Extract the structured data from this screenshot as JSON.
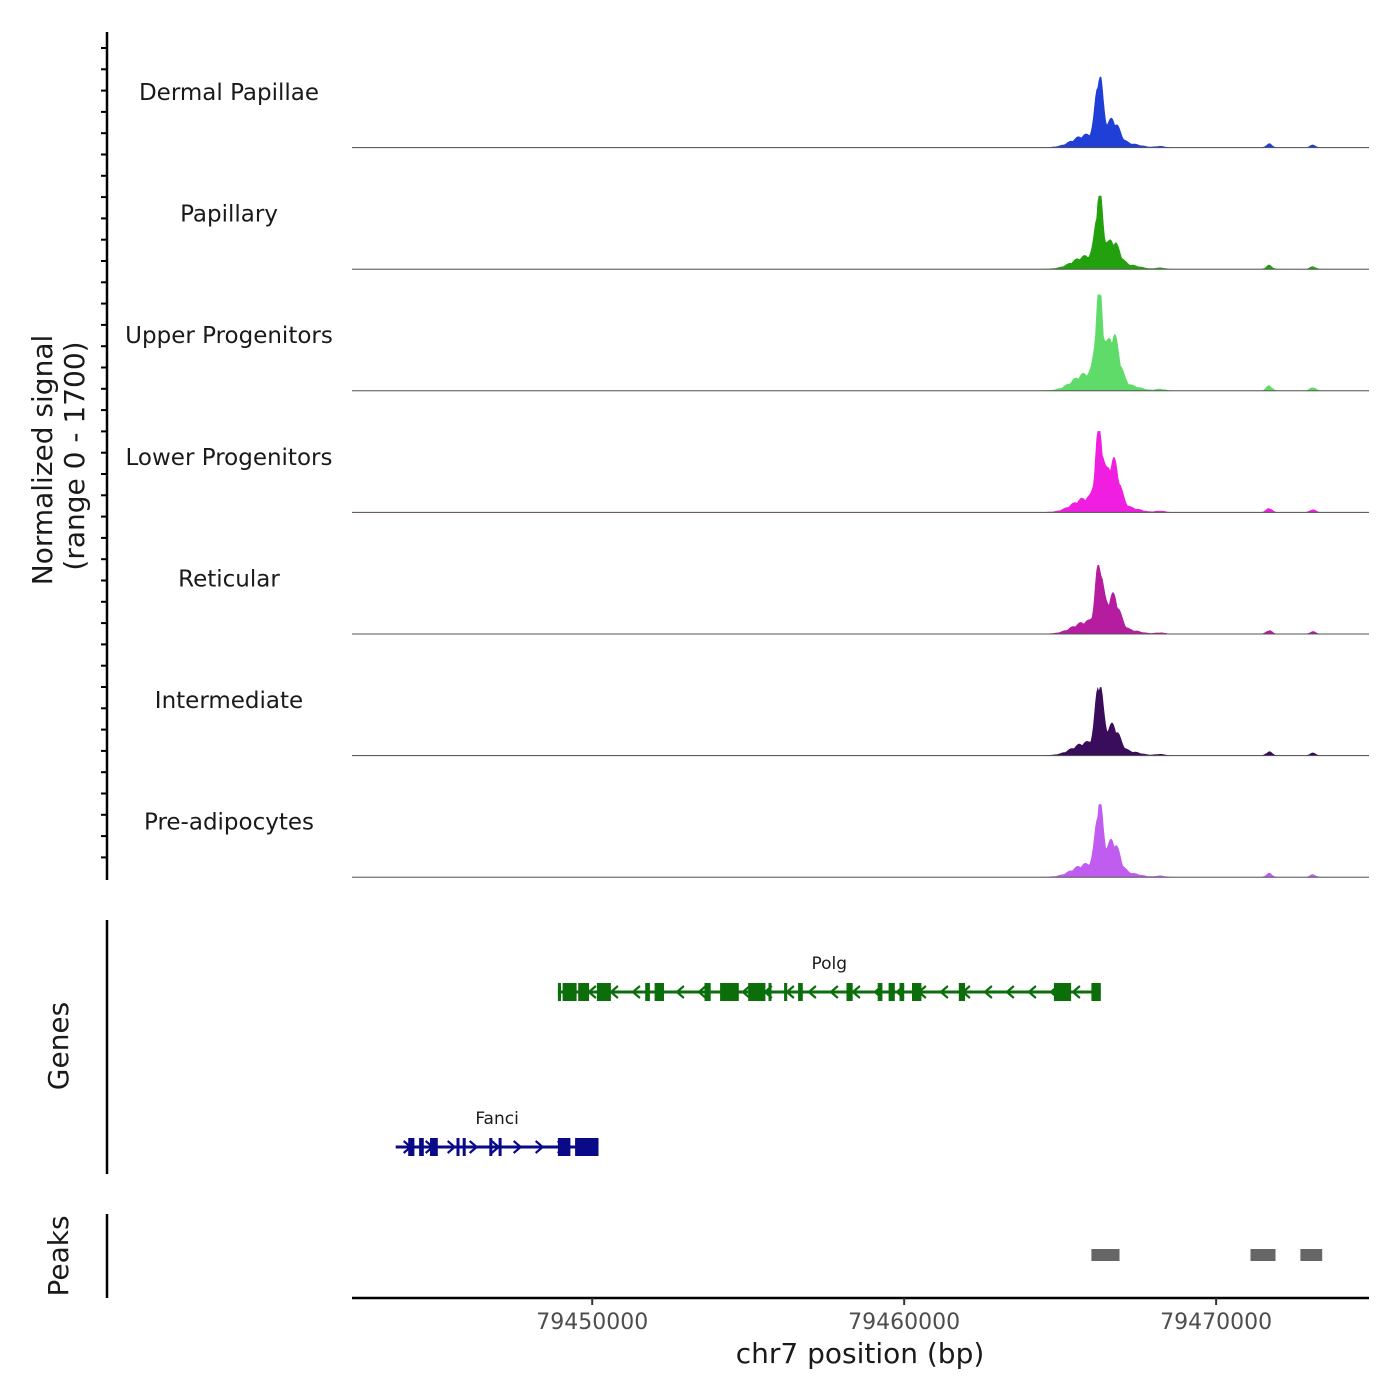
{
  "chart_data": {
    "type": "area",
    "title": "",
    "chromosome": "chr7",
    "xlabel": "chr7 position (bp)",
    "xlim": [
      79442300,
      79474900
    ],
    "x_ticks": [
      79450000,
      79460000,
      79470000
    ],
    "signal": {
      "ylabel": "Normalized signal",
      "yrange_label": "(range 0 - 1700)",
      "ylim": [
        0,
        1700
      ],
      "shared_profile": {
        "peaks": [
          {
            "center": 79466250,
            "width": 110,
            "rel": 1.0
          },
          {
            "center": 79466700,
            "width": 200,
            "rel": 0.35
          },
          {
            "center": 79466100,
            "width": 500,
            "rel": 0.18
          },
          {
            "center": 79465600,
            "width": 350,
            "rel": 0.06
          },
          {
            "center": 79467300,
            "width": 300,
            "rel": 0.05
          },
          {
            "center": 79468200,
            "width": 150,
            "rel": 0.02
          },
          {
            "center": 79471700,
            "width": 90,
            "rel": 0.06
          },
          {
            "center": 79473100,
            "width": 90,
            "rel": 0.04
          }
        ]
      },
      "series": [
        {
          "name": "Dermal Papillae",
          "color": "#1f3fd6",
          "max": 1430,
          "second_rel": 0.55
        },
        {
          "name": "Papillary",
          "color": "#22a00e",
          "max": 1480,
          "second_rel": 0.55
        },
        {
          "name": "Upper Progenitors",
          "color": "#5fdb6a",
          "max": 1940,
          "second_rel": 0.9
        },
        {
          "name": "Lower Progenitors",
          "color": "#f01ee0",
          "max": 1640,
          "second_rel": 1.0
        },
        {
          "name": "Reticular",
          "color": "#b51ca0",
          "max": 1390,
          "second_rel": 0.85
        },
        {
          "name": "Intermediate",
          "color": "#3a0c5c",
          "max": 1460,
          "second_rel": 0.6
        },
        {
          "name": "Pre-adipocytes",
          "color": "#c05cf0",
          "max": 1470,
          "second_rel": 0.75
        }
      ]
    },
    "genes": {
      "ylabel": "Genes",
      "items": [
        {
          "name": "Polg",
          "color": "#0b6e0b",
          "strand": "-",
          "start": 79448900,
          "end": 79466300,
          "exons": [
            [
              79448900,
              79449000
            ],
            [
              79449050,
              79449500
            ],
            [
              79449550,
              79449900
            ],
            [
              79450150,
              79450600
            ],
            [
              79451700,
              79451850
            ],
            [
              79452000,
              79452300
            ],
            [
              79453600,
              79453800
            ],
            [
              79454100,
              79454700
            ],
            [
              79455000,
              79455550
            ],
            [
              79455650,
              79455700
            ],
            [
              79456150,
              79456250
            ],
            [
              79456600,
              79456750
            ],
            [
              79458150,
              79458350
            ],
            [
              79459150,
              79459300
            ],
            [
              79459500,
              79459700
            ],
            [
              79459850,
              79460000
            ],
            [
              79460250,
              79460550
            ],
            [
              79461750,
              79461950
            ],
            [
              79464800,
              79465350
            ],
            [
              79466000,
              79466300
            ]
          ]
        },
        {
          "name": "Fanci",
          "color": "#0a0a88",
          "strand": "+",
          "start": 79443700,
          "end": 79450200,
          "exons": [
            [
              79444100,
              79444300
            ],
            [
              79444450,
              79444600
            ],
            [
              79444800,
              79445050
            ],
            [
              79445650,
              79445700
            ],
            [
              79445850,
              79445900
            ],
            [
              79446700,
              79446750
            ],
            [
              79447000,
              79447050
            ],
            [
              79448900,
              79449300
            ],
            [
              79449450,
              79450200
            ]
          ]
        }
      ]
    },
    "peaks": {
      "ylabel": "Peaks",
      "ranges": [
        [
          79466000,
          79466900
        ],
        [
          79471100,
          79471900
        ],
        [
          79472700,
          79473400
        ]
      ]
    }
  }
}
